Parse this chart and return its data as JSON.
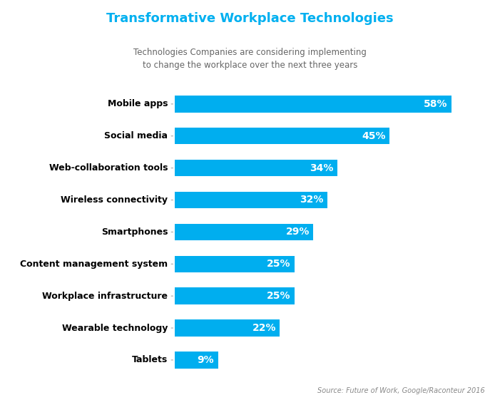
{
  "title": "Transformative Workplace Technologies",
  "subtitle": "Technologies Companies are considering implementing\nto change the workplace over the next three years",
  "source": "Source: Future of Work, Google/Raconteur 2016",
  "categories": [
    "Mobile apps",
    "Social media",
    "Web-collaboration tools",
    "Wireless connectivity",
    "Smartphones",
    "Content management system",
    "Workplace infrastructure",
    "Wearable technology",
    "Tablets"
  ],
  "values": [
    58,
    45,
    34,
    32,
    29,
    25,
    25,
    22,
    9
  ],
  "bar_color": "#00AEEF",
  "title_color": "#00B0F0",
  "subtitle_color": "#666666",
  "label_color": "#000000",
  "value_label_color": "#ffffff",
  "source_color": "#888888",
  "background_color": "#ffffff",
  "bar_height": 0.52,
  "figsize": [
    7.01,
    5.61
  ],
  "dpi": 100
}
